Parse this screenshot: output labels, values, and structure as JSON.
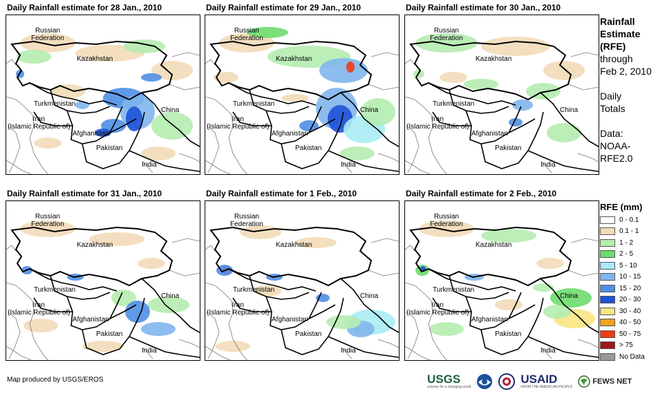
{
  "panels": [
    {
      "title": "Daily Rainfall estimate for 28 Jan., 2010"
    },
    {
      "title": "Daily Rainfall estimate for 29 Jan., 2010"
    },
    {
      "title": "Daily Rainfall estimate for 30 Jan., 2010"
    },
    {
      "title": "Daily Rainfall estimate for 31 Jan., 2010"
    },
    {
      "title": "Daily Rainfall estimate for 1 Feb., 2010"
    },
    {
      "title": "Daily Rainfall estimate for 2 Feb., 2010"
    }
  ],
  "map_labels": {
    "russia_1": "Russian",
    "russia_2": "Federation",
    "kazakhstan": "Kazakhstan",
    "turkmenistan": "Turkmenistan",
    "iran_1": "Iran",
    "iran_2": "(Islamic Republic of)",
    "afghanistan": "Afghanistan",
    "pakistan": "Pakistan",
    "china": "China",
    "india": "India"
  },
  "side": {
    "title_1": "Rainfall",
    "title_2": "Estimate",
    "title_3": "(RFE)",
    "through": "through",
    "date": "Feb 2, 2010",
    "daily_1": "Daily",
    "daily_2": "Totals",
    "data_1": "Data:",
    "data_2": "NOAA-",
    "data_3": "RFE2.0"
  },
  "legend": {
    "title": "RFE (mm)",
    "items": [
      {
        "label": "0 - 0.1",
        "color": "#ffffff"
      },
      {
        "label": "0.1 - 1",
        "color": "#f2dcb8"
      },
      {
        "label": "1 - 2",
        "color": "#b5ecb0"
      },
      {
        "label": "2 - 5",
        "color": "#6edc6e"
      },
      {
        "label": "5 - 10",
        "color": "#a9ecf4"
      },
      {
        "label": "10 - 15",
        "color": "#7fb6ec"
      },
      {
        "label": "15 - 20",
        "color": "#4f8ee6"
      },
      {
        "label": "20 - 30",
        "color": "#1f52d8"
      },
      {
        "label": "30 - 40",
        "color": "#fbe482"
      },
      {
        "label": "40 - 50",
        "color": "#f5a21e"
      },
      {
        "label": "50 - 75",
        "color": "#f03c10"
      },
      {
        "label": "> 75",
        "color": "#a01818"
      },
      {
        "label": "No Data",
        "color": "#999999"
      }
    ]
  },
  "credit": "Map produced by USGS/EROS",
  "logos": {
    "usgs": "USGS",
    "usgs_tag": "science for a changing world",
    "usaid": "USAID",
    "usaid_tag": "FROM THE AMERICAN PEOPLE",
    "fews": "FEWS NET"
  }
}
